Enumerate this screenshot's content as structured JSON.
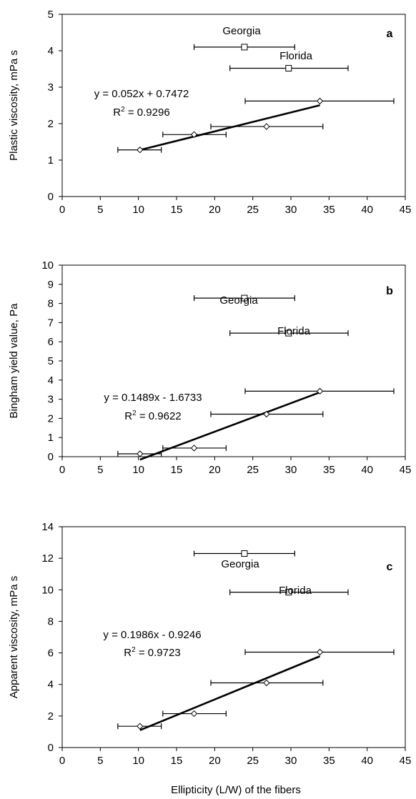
{
  "x_axis_label": "Ellipticity (L/W) of the fibers",
  "chart_data": [
    {
      "type": "scatter",
      "panel_letter": "a",
      "ylabel": "Plastic viscosity, mPa s",
      "xlim": [
        0,
        45
      ],
      "ylim": [
        0,
        5
      ],
      "x_ticks": [
        0,
        5,
        10,
        15,
        20,
        25,
        30,
        35,
        40,
        45
      ],
      "y_ticks": [
        0,
        1,
        2,
        3,
        4,
        5
      ],
      "grid": false,
      "series": [
        {
          "marker": "diamond",
          "points": [
            {
              "x": 10.2,
              "y": 1.28,
              "xerr": [
                7.3,
                13.0
              ]
            },
            {
              "x": 17.3,
              "y": 1.7,
              "xerr": [
                13.2,
                21.5
              ]
            },
            {
              "x": 26.8,
              "y": 1.92,
              "xerr": [
                19.5,
                34.2
              ]
            },
            {
              "x": 33.8,
              "y": 2.62,
              "xerr": [
                24.0,
                43.5
              ]
            }
          ]
        },
        {
          "marker": "square",
          "points": [
            {
              "x": 23.9,
              "y": 4.1,
              "xerr": [
                17.3,
                30.5
              ],
              "label": "Georgia"
            },
            {
              "x": 29.7,
              "y": 3.52,
              "xerr": [
                22.0,
                37.5
              ],
              "label": "Florida"
            }
          ]
        }
      ],
      "trendline": {
        "slope": 0.052,
        "intercept": 0.7472,
        "x_range": [
          10.2,
          33.8
        ]
      },
      "equation": "y = 0.052x + 0.7472",
      "r2_prefix": "R",
      "r2_sup": "2",
      "r2_value": " = 0.9296"
    },
    {
      "type": "scatter",
      "panel_letter": "b",
      "ylabel": "Bingham yield value, Pa",
      "xlim": [
        0,
        45
      ],
      "ylim": [
        0,
        10
      ],
      "x_ticks": [
        0,
        5,
        10,
        15,
        20,
        25,
        30,
        35,
        40,
        45
      ],
      "y_ticks": [
        0,
        1,
        2,
        3,
        4,
        5,
        6,
        7,
        8,
        9,
        10
      ],
      "grid": false,
      "series": [
        {
          "marker": "diamond",
          "points": [
            {
              "x": 10.2,
              "y": 0.15,
              "xerr": [
                7.3,
                13.0
              ]
            },
            {
              "x": 17.3,
              "y": 0.45,
              "xerr": [
                13.2,
                21.5
              ]
            },
            {
              "x": 26.8,
              "y": 2.22,
              "xerr": [
                19.5,
                34.2
              ]
            },
            {
              "x": 33.8,
              "y": 3.42,
              "xerr": [
                24.0,
                43.5
              ]
            }
          ]
        },
        {
          "marker": "square",
          "points": [
            {
              "x": 23.9,
              "y": 8.28,
              "xerr": [
                17.3,
                30.5
              ],
              "label": "Georgia"
            },
            {
              "x": 29.7,
              "y": 6.45,
              "xerr": [
                22.0,
                37.5
              ],
              "label": "Florida"
            }
          ]
        }
      ],
      "trendline": {
        "slope": 0.1489,
        "intercept": -1.6733,
        "x_range": [
          10.2,
          33.8
        ]
      },
      "equation": "y = 0.1489x - 1.6733",
      "r2_prefix": "R",
      "r2_sup": "2",
      "r2_value": " = 0.9622"
    },
    {
      "type": "scatter",
      "panel_letter": "c",
      "ylabel": "Apparent viscosity, mPa s",
      "xlim": [
        0,
        45
      ],
      "ylim": [
        0,
        14
      ],
      "x_ticks": [
        0,
        5,
        10,
        15,
        20,
        25,
        30,
        35,
        40,
        45
      ],
      "y_ticks": [
        0,
        2,
        4,
        6,
        8,
        10,
        12,
        14
      ],
      "grid": false,
      "series": [
        {
          "marker": "diamond",
          "points": [
            {
              "x": 10.2,
              "y": 1.35,
              "xerr": [
                7.3,
                13.0
              ]
            },
            {
              "x": 17.3,
              "y": 2.15,
              "xerr": [
                13.2,
                21.5
              ]
            },
            {
              "x": 26.8,
              "y": 4.1,
              "xerr": [
                19.5,
                34.2
              ]
            },
            {
              "x": 33.8,
              "y": 6.05,
              "xerr": [
                24.0,
                43.5
              ]
            }
          ]
        },
        {
          "marker": "square",
          "points": [
            {
              "x": 23.9,
              "y": 12.3,
              "xerr": [
                17.3,
                30.5
              ],
              "label": "Georgia"
            },
            {
              "x": 29.7,
              "y": 9.85,
              "xerr": [
                22.0,
                37.5
              ],
              "label": "Florida"
            }
          ]
        }
      ],
      "trendline": {
        "slope": 0.1986,
        "intercept": -0.9246,
        "x_range": [
          10.2,
          33.8
        ]
      },
      "equation": "y = 0.1986x - 0.9246",
      "r2_prefix": "R",
      "r2_sup": "2",
      "r2_value": " = 0.9723"
    }
  ]
}
